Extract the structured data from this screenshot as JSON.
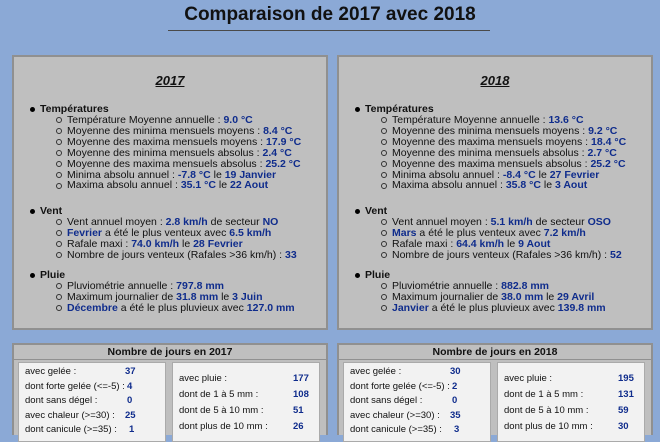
{
  "page_title": "Comparaison de 2017 avec 2018",
  "panels": [
    {
      "year": "2017",
      "temps": {
        "title": "Températures",
        "items": [
          [
            "Température Moyenne annuelle : ",
            "9.0 °C",
            "",
            ""
          ],
          [
            "Moyenne des minima mensuels moyens : ",
            "8.4 °C",
            "",
            ""
          ],
          [
            "Moyenne des maxima mensuels moyens : ",
            "17.9 °C",
            "",
            ""
          ],
          [
            "Moyenne des minima mensuels absolus : ",
            "2.4 °C",
            "",
            ""
          ],
          [
            "Moyenne des maxima mensuels absolus : ",
            "25.2 °C",
            "",
            ""
          ],
          [
            "Minima absolu annuel : ",
            "-7.8 °C",
            " le ",
            "19 Janvier"
          ],
          [
            "Maxima absolu annuel : ",
            "35.1 °C",
            " le ",
            "22 Aout"
          ]
        ]
      },
      "vent": {
        "title": "Vent",
        "items": [
          [
            "Vent annuel moyen : ",
            "2.8 km/h",
            " de secteur ",
            "NO"
          ],
          [
            "",
            "Fevrier",
            " a été le plus venteux avec ",
            "6.5 km/h"
          ],
          [
            "Rafale maxi : ",
            "74.0 km/h",
            " le ",
            "28 Fevrier"
          ],
          [
            "Nombre de jours venteux (Rafales >36 km/h) : ",
            "33",
            "",
            ""
          ]
        ]
      },
      "pluie": {
        "title": "Pluie",
        "items": [
          [
            "Pluviométrie annuelle : ",
            "797.8 mm",
            "",
            ""
          ],
          [
            "Maximum journalier de ",
            "31.8 mm",
            " le ",
            "3 Juin"
          ],
          [
            "",
            "Décembre",
            " a été le plus pluvieux avec ",
            "127.0 mm"
          ]
        ]
      },
      "days": {
        "title": "Nombre de jours en 2017",
        "left": [
          [
            "avec gelée :",
            "37"
          ],
          [
            "dont forte gelée (<=-5) :",
            "4"
          ],
          [
            "dont sans dégel :",
            "0"
          ],
          [
            "avec chaleur (>=30) :",
            "25"
          ],
          [
            "dont canicule (>=35) :",
            "1"
          ]
        ],
        "right": [
          [
            "avec pluie :",
            "177"
          ],
          [
            "dont de 1 à 5 mm :",
            "108"
          ],
          [
            "dont de 5 à 10 mm :",
            "51"
          ],
          [
            "dont plus de 10 mm :",
            "26"
          ]
        ]
      }
    },
    {
      "year": "2018",
      "temps": {
        "title": "Températures",
        "items": [
          [
            "Température Moyenne annuelle : ",
            "13.6 °C",
            "",
            ""
          ],
          [
            "Moyenne des minima mensuels moyens : ",
            "9.2 °C",
            "",
            ""
          ],
          [
            "Moyenne des maxima mensuels moyens : ",
            "18.4 °C",
            "",
            ""
          ],
          [
            "Moyenne des minima mensuels absolus : ",
            "2.7 °C",
            "",
            ""
          ],
          [
            "Moyenne des maxima mensuels absolus : ",
            "25.2 °C",
            "",
            ""
          ],
          [
            "Minima absolu annuel : ",
            "-8.4 °C",
            " le ",
            "27 Fevrier"
          ],
          [
            "Maxima absolu annuel : ",
            "35.8 °C",
            " le ",
            "3 Aout"
          ]
        ]
      },
      "vent": {
        "title": "Vent",
        "items": [
          [
            "Vent annuel moyen : ",
            "5.1 km/h",
            " de secteur ",
            "OSO"
          ],
          [
            "",
            "Mars",
            " a été le plus venteux avec ",
            "7.2 km/h"
          ],
          [
            "Rafale maxi : ",
            "64.4 km/h",
            " le ",
            "9 Aout"
          ],
          [
            "Nombre de jours venteux (Rafales >36 km/h) : ",
            "52",
            "",
            ""
          ]
        ]
      },
      "pluie": {
        "title": "Pluie",
        "items": [
          [
            "Pluviométrie annuelle : ",
            "882.8 mm",
            "",
            ""
          ],
          [
            "Maximum journalier de ",
            "38.0 mm",
            " le ",
            "29 Avril"
          ],
          [
            "",
            "Janvier",
            " a été le plus pluvieux avec ",
            "139.8 mm"
          ]
        ]
      },
      "days": {
        "title": "Nombre de jours en 2018",
        "left": [
          [
            "avec gelée :",
            "30"
          ],
          [
            "dont forte gelée (<=-5) :",
            "2"
          ],
          [
            "dont sans dégel :",
            "0"
          ],
          [
            "avec chaleur (>=30) :",
            "35"
          ],
          [
            "dont canicule (>=35) :",
            "3"
          ]
        ],
        "right": [
          [
            "avec pluie :",
            "195"
          ],
          [
            "dont de 1 à 5 mm :",
            "131"
          ],
          [
            "dont de 5 à 10 mm :",
            "59"
          ],
          [
            "dont plus de 10 mm :",
            "30"
          ]
        ]
      }
    }
  ]
}
